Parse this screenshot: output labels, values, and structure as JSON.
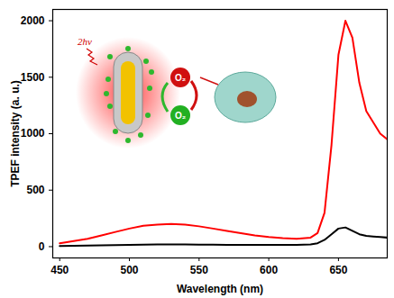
{
  "chart_data": {
    "type": "line",
    "x_label": "Wavelength (nm)",
    "y_label": "TPEF intensity (a. u.)",
    "xlim": [
      445,
      685
    ],
    "ylim": [
      -100,
      2100
    ],
    "xticks": [
      450,
      500,
      550,
      600,
      650
    ],
    "yticks": [
      0,
      500,
      1000,
      1500,
      2000
    ],
    "grid": false,
    "annotations": [
      "2hν",
      "O₂",
      "O₂"
    ],
    "x": [
      450,
      460,
      470,
      480,
      490,
      500,
      510,
      520,
      530,
      540,
      550,
      560,
      570,
      580,
      590,
      600,
      610,
      620,
      630,
      635,
      640,
      645,
      650,
      655,
      660,
      665,
      670,
      675,
      680,
      685
    ],
    "series": [
      {
        "color": "#ff0000",
        "values": [
          30,
          50,
          70,
          100,
          130,
          160,
          185,
          195,
          200,
          195,
          180,
          160,
          140,
          120,
          100,
          85,
          75,
          70,
          80,
          120,
          300,
          900,
          1700,
          2000,
          1850,
          1450,
          1200,
          1100,
          1000,
          950
        ]
      },
      {
        "color": "#000000",
        "values": [
          5,
          8,
          10,
          12,
          14,
          15,
          18,
          20,
          20,
          20,
          18,
          17,
          16,
          15,
          15,
          15,
          15,
          16,
          20,
          30,
          60,
          110,
          160,
          170,
          140,
          110,
          95,
          90,
          85,
          80
        ]
      }
    ]
  }
}
